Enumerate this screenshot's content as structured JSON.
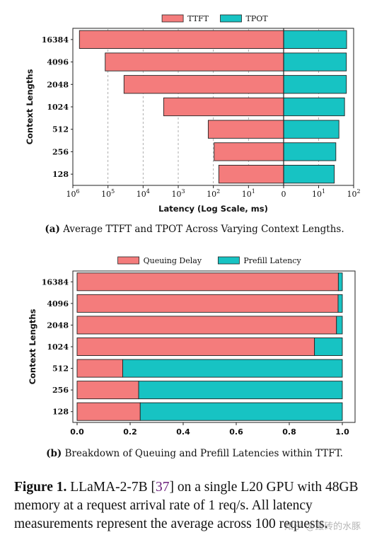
{
  "chart_data": [
    {
      "type": "bar",
      "orientation": "horizontal",
      "caption_label": "(a)",
      "caption_text": "Average TTFT and TPOT Across Varying Context Lengths.",
      "xlabel": "Latency (Log Scale, ms)",
      "ylabel": "Context Lengths",
      "xscale": "symlog (mirrored: TTFT extends left, TPOT extends right)",
      "x_tick_labels": [
        "10^6",
        "10^5",
        "10^4",
        "10^3",
        "10^2",
        "10^1",
        "0",
        "10^1",
        "10^2"
      ],
      "legend_position": "top-center",
      "grid": "vertical dashed",
      "categories": [
        "16384",
        "4096",
        "2048",
        "1024",
        "512",
        "256",
        "128"
      ],
      "series": [
        {
          "name": "TTFT",
          "color": "#f47c7c",
          "values": [
            650000,
            120000,
            35000,
            2600,
            140,
            95,
            70
          ]
        },
        {
          "name": "TPOT",
          "color": "#17c3c3",
          "values": [
            63,
            62,
            62,
            55,
            38,
            31,
            28
          ]
        }
      ]
    },
    {
      "type": "bar",
      "orientation": "horizontal",
      "stacked": true,
      "caption_label": "(b)",
      "caption_text": "Breakdown of Queuing and Prefill Latencies within TTFT.",
      "xlabel": "",
      "ylabel": "Context Lengths",
      "xlim": [
        0,
        1
      ],
      "x_tick_labels": [
        "0.0",
        "0.2",
        "0.4",
        "0.6",
        "0.8",
        "1.0"
      ],
      "legend_position": "top-center",
      "grid": "none",
      "categories": [
        "16384",
        "4096",
        "2048",
        "1024",
        "512",
        "256",
        "128"
      ],
      "series": [
        {
          "name": "Queuing Delay",
          "color": "#f47c7c",
          "values": [
            0.985,
            0.984,
            0.978,
            0.895,
            0.172,
            0.232,
            0.238
          ]
        },
        {
          "name": "Prefill Latency",
          "color": "#17c3c3",
          "values": [
            0.015,
            0.016,
            0.022,
            0.105,
            0.828,
            0.768,
            0.762
          ]
        }
      ]
    }
  ],
  "figure_caption": {
    "label": "Figure 1.",
    "text_before_ref": "LLaMA-2-7B [",
    "ref": "37",
    "text_after_ref": "] on a single L20 GPU with 48GB memory at a request arrival rate of 1 req/s. All latency measurements represent the average across 100 requests."
  },
  "watermark": "知乎 @搬砖的水豚"
}
